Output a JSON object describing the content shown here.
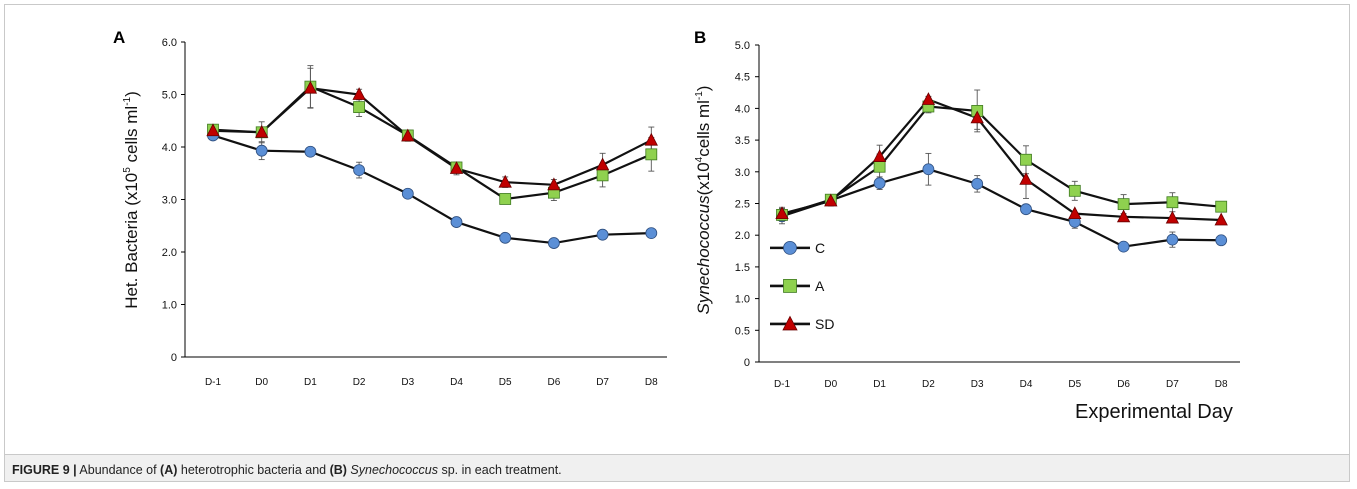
{
  "figure": {
    "caption_label": "FIGURE 9 |",
    "caption_parts": [
      {
        "text": " Abundance of ",
        "style": "normal"
      },
      {
        "text": "(A)",
        "style": "bold"
      },
      {
        "text": " heterotrophic bacteria and ",
        "style": "normal"
      },
      {
        "text": "(B)",
        "style": "bold"
      },
      {
        "text": " Synechococcus",
        "style": "italic"
      },
      {
        "text": " sp. in each treatment.",
        "style": "normal"
      }
    ]
  },
  "colors": {
    "C": "#5b8fd6",
    "A": "#8fd14f",
    "SD": "#c00000",
    "line": "#111111"
  },
  "chart_data": [
    {
      "panel": "A",
      "type": "line",
      "title": "",
      "xlabel": "",
      "ylabel": "Het. Bacteria (x10^5 cells ml^-1)",
      "ylabel_parts": {
        "pre": "Het. Bacteria (x10",
        "sup1": "5",
        "mid": " cells ml",
        "sup2": "-1",
        "post": ")"
      },
      "categories": [
        "D-1",
        "D0",
        "D1",
        "D2",
        "D3",
        "D4",
        "D5",
        "D6",
        "D7",
        "D8"
      ],
      "ylim": [
        0,
        6
      ],
      "yticks": [
        0,
        1,
        2,
        3,
        4,
        5,
        6
      ],
      "ytick_labels": [
        "0",
        "1.0",
        "2.0",
        "3.0",
        "4.0",
        "5.0",
        "6.0"
      ],
      "grid": false,
      "legend": "none",
      "series": [
        {
          "name": "C",
          "marker": "circle",
          "values": [
            4.22,
            3.93,
            3.91,
            3.56,
            3.11,
            2.57,
            2.27,
            2.17,
            2.33,
            2.36
          ],
          "errors": [
            0.05,
            0.17,
            0.0,
            0.15,
            0.0,
            0.0,
            0.0,
            0.0,
            0.0,
            0.0
          ]
        },
        {
          "name": "A",
          "marker": "square",
          "values": [
            4.33,
            4.28,
            5.15,
            4.76,
            4.22,
            3.61,
            3.01,
            3.13,
            3.46,
            3.86
          ],
          "errors": [
            0.08,
            0.2,
            0.4,
            0.18,
            0.1,
            0.1,
            0.05,
            0.15,
            0.22,
            0.32
          ]
        },
        {
          "name": "SD",
          "marker": "triangle",
          "values": [
            4.31,
            4.28,
            5.12,
            5.0,
            4.21,
            3.59,
            3.33,
            3.28,
            3.66,
            4.13
          ],
          "errors": [
            0.05,
            0.1,
            0.38,
            0.1,
            0.1,
            0.12,
            0.1,
            0.1,
            0.22,
            0.25
          ]
        }
      ]
    },
    {
      "panel": "B",
      "type": "line",
      "title": "",
      "xlabel": "Experimental Day",
      "ylabel": "Synechococcus(x10^4cells ml^-1)",
      "ylabel_parts": {
        "italic": "Synechococcus",
        "pre": "(x10",
        "sup1": "4",
        "mid": "cells ml",
        "sup2": "-1",
        "post": ")"
      },
      "categories": [
        "D-1",
        "D0",
        "D1",
        "D2",
        "D3",
        "D4",
        "D5",
        "D6",
        "D7",
        "D8"
      ],
      "ylim": [
        0,
        5
      ],
      "yticks": [
        0,
        0.5,
        1,
        1.5,
        2,
        2.5,
        3,
        3.5,
        4,
        4.5,
        5
      ],
      "ytick_labels": [
        "0",
        "0.5",
        "1.0",
        "1.5",
        "2.0",
        "2.5",
        "3.0",
        "3.5",
        "4.0",
        "4.5",
        "5.0"
      ],
      "grid": false,
      "legend": "left",
      "series": [
        {
          "name": "C",
          "marker": "circle",
          "values": [
            2.3,
            2.55,
            2.82,
            3.04,
            2.81,
            2.41,
            2.21,
            1.82,
            1.93,
            1.92
          ],
          "errors": [
            0.12,
            0.08,
            0.1,
            0.25,
            0.13,
            0.0,
            0.1,
            0.0,
            0.12,
            0.0
          ]
        },
        {
          "name": "A",
          "marker": "square",
          "values": [
            2.32,
            2.56,
            3.08,
            4.03,
            3.96,
            3.19,
            2.7,
            2.49,
            2.52,
            2.45
          ],
          "errors": [
            0.1,
            0.08,
            0.2,
            0.1,
            0.33,
            0.22,
            0.15,
            0.15,
            0.15,
            0.0
          ]
        },
        {
          "name": "SD",
          "marker": "triangle",
          "values": [
            2.34,
            2.54,
            3.24,
            4.14,
            3.85,
            2.88,
            2.34,
            2.29,
            2.27,
            2.24
          ],
          "errors": [
            0.1,
            0.08,
            0.18,
            0.05,
            0.18,
            0.3,
            0.0,
            0.0,
            0.0,
            0.0
          ]
        }
      ]
    }
  ],
  "panel_letters": [
    "A",
    "B"
  ]
}
